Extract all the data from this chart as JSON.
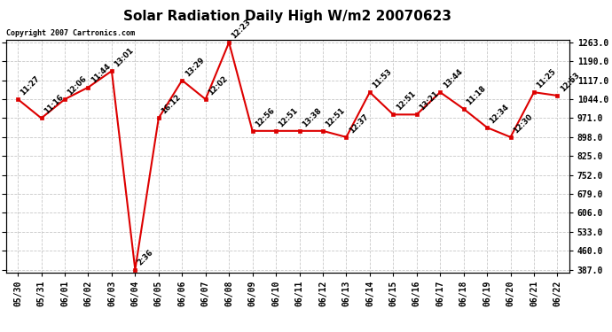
{
  "title": "Solar Radiation Daily High W/m2 20070623",
  "copyright": "Copyright 2007 Cartronics.com",
  "dates": [
    "05/30",
    "05/31",
    "06/01",
    "06/02",
    "06/03",
    "06/04",
    "06/05",
    "06/06",
    "06/07",
    "06/08",
    "06/09",
    "06/10",
    "06/11",
    "06/12",
    "06/13",
    "06/14",
    "06/15",
    "06/16",
    "06/17",
    "06/18",
    "06/19",
    "06/20",
    "06/21",
    "06/22"
  ],
  "values": [
    1044,
    971,
    1044,
    1090,
    1153,
    387,
    971,
    1117,
    1044,
    1263,
    922,
    922,
    922,
    922,
    898,
    1071,
    985,
    985,
    1071,
    1007,
    935,
    898,
    1071,
    1058
  ],
  "times": [
    "11:27",
    "11:16",
    "12:06",
    "11:44",
    "13:01",
    "2:36",
    "16:12",
    "13:29",
    "12:02",
    "12:23",
    "12:56",
    "12:51",
    "13:38",
    "12:51",
    "12:37",
    "11:53",
    "12:51",
    "13:21",
    "13:44",
    "11:18",
    "12:34",
    "12:30",
    "11:25",
    "12:53"
  ],
  "line_color": "#dd0000",
  "marker_color": "#dd0000",
  "background_color": "#ffffff",
  "grid_color": "#c8c8c8",
  "ylim_min": 387.0,
  "ylim_max": 1263.0,
  "yticks": [
    387.0,
    460.0,
    533.0,
    606.0,
    679.0,
    752.0,
    825.0,
    898.0,
    971.0,
    1044.0,
    1117.0,
    1190.0,
    1263.0
  ],
  "title_fontsize": 11,
  "label_fontsize": 7,
  "tick_fontsize": 7,
  "annot_fontsize": 6
}
